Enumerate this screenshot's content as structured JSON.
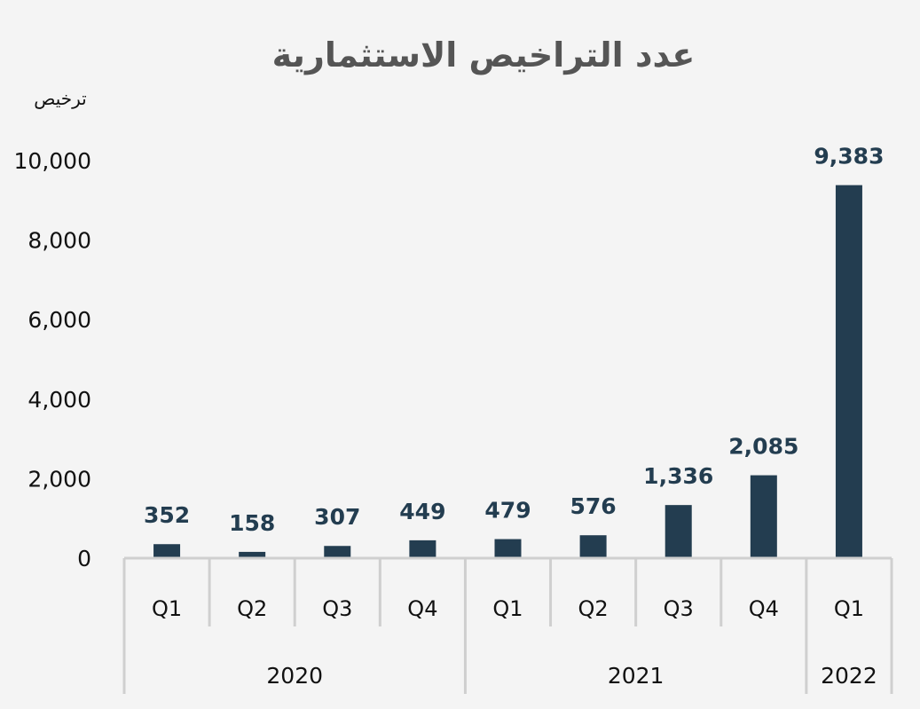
{
  "chart_data": {
    "type": "bar",
    "title": "عدد التراخيص الاستثمارية",
    "ylabel": "ترخيص",
    "ylim": [
      0,
      10000
    ],
    "yticks": [
      "0",
      "2,000",
      "4,000",
      "6,000",
      "8,000",
      "10,000"
    ],
    "categories": [
      "Q1",
      "Q2",
      "Q3",
      "Q4",
      "Q1",
      "Q2",
      "Q3",
      "Q4",
      "Q1"
    ],
    "values": [
      352,
      158,
      307,
      449,
      479,
      576,
      1336,
      2085,
      9383
    ],
    "data_labels": [
      "352",
      "158",
      "307",
      "449",
      "479",
      "576",
      "1,336",
      "2,085",
      "9,383"
    ],
    "groups": [
      {
        "label": "2020",
        "count": 4
      },
      {
        "label": "2021",
        "count": 4
      },
      {
        "label": "2022",
        "count": 1
      }
    ],
    "bar_color": "#233d50",
    "grid": false
  }
}
